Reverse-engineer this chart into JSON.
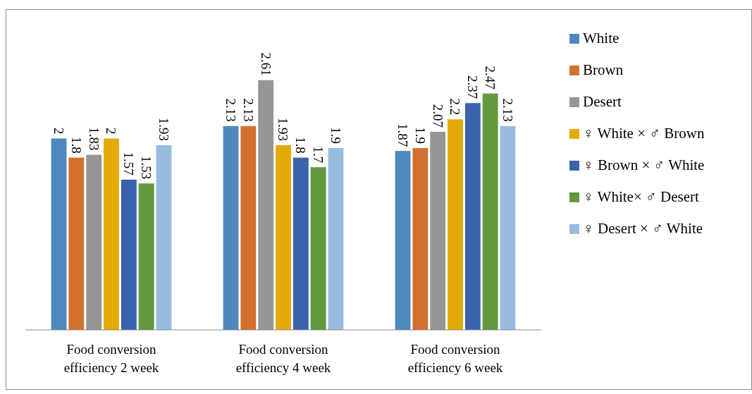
{
  "chart_data": {
    "type": "bar",
    "categories": [
      "Food conversion efficiency 2 week",
      "Food conversion efficiency 4 week",
      "Food conversion efficiency 6 week"
    ],
    "series": [
      {
        "name": "White",
        "color": "#4f88be",
        "values": [
          2,
          2.13,
          1.87
        ]
      },
      {
        "name": "Brown",
        "color": "#d4702e",
        "values": [
          1.8,
          2.13,
          1.9
        ]
      },
      {
        "name": "Desert",
        "color": "#969696",
        "values": [
          1.83,
          2.61,
          2.07
        ]
      },
      {
        "name": "♀ White × ♂ Brown",
        "color": "#e4aa04",
        "values": [
          2,
          1.93,
          2.2
        ]
      },
      {
        "name": "♀ Brown × ♂ White",
        "color": "#3b62ad",
        "values": [
          1.57,
          1.8,
          2.37
        ]
      },
      {
        "name": "♀ White× ♂ Desert",
        "color": "#62983e",
        "values": [
          1.53,
          1.7,
          2.47
        ]
      },
      {
        "name": "♀ Desert × ♂ White",
        "color": "#98bbe0",
        "values": [
          1.93,
          1.9,
          2.13
        ]
      }
    ],
    "data_labels": true,
    "legend": "right"
  }
}
